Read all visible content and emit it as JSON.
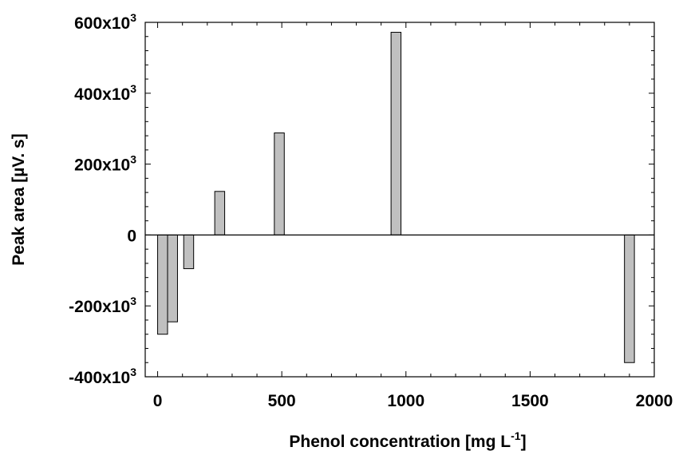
{
  "chart_data": {
    "type": "bar",
    "xlabel": "Phenol concentration [mg L",
    "xlabel_sup": "-1",
    "xlabel_end": "]",
    "ylabel": "Peak area [µV. s]",
    "xlim": [
      -50,
      2000
    ],
    "ylim": [
      -400000,
      600000
    ],
    "x_ticks": [
      {
        "value": 0,
        "label": "0"
      },
      {
        "value": 500,
        "label": "500"
      },
      {
        "value": 1000,
        "label": "1000"
      },
      {
        "value": 1500,
        "label": "1500"
      },
      {
        "value": 2000,
        "label": "2000"
      }
    ],
    "y_ticks": [
      {
        "value": 600000,
        "base": "600x10",
        "exp": "3"
      },
      {
        "value": 400000,
        "base": "400x10",
        "exp": "3"
      },
      {
        "value": 200000,
        "base": "200x10",
        "exp": "3"
      },
      {
        "value": 0,
        "base": "0",
        "exp": ""
      },
      {
        "value": -200000,
        "base": "-200x10",
        "exp": "3"
      },
      {
        "value": -400000,
        "base": "-400x10",
        "exp": "3"
      }
    ],
    "bar_width": 40,
    "bars": [
      {
        "x": 20,
        "y": -280000
      },
      {
        "x": 60,
        "y": -245000
      },
      {
        "x": 125,
        "y": -95000
      },
      {
        "x": 250,
        "y": 123000
      },
      {
        "x": 490,
        "y": 288000
      },
      {
        "x": 960,
        "y": 572000
      },
      {
        "x": 1900,
        "y": -360000
      }
    ],
    "grid": false,
    "bar_color": "#c0c0c0",
    "edge_color": "#000000"
  }
}
